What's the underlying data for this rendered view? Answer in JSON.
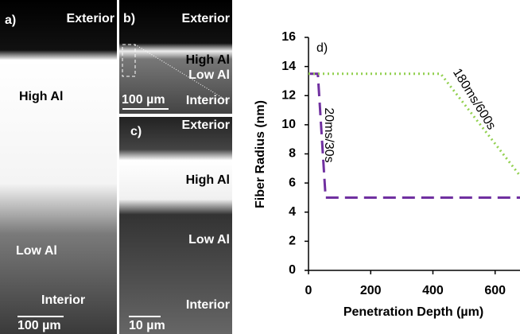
{
  "chart_data": {
    "type": "line",
    "panel_label": "d)",
    "x_label": "Penetration Depth (µm)",
    "y_label": "Fiber Radius (nm)",
    "xlim": [
      0,
      680
    ],
    "ylim": [
      0,
      16
    ],
    "xticks": [
      0,
      200,
      400,
      600
    ],
    "yticks": [
      0,
      2,
      4,
      6,
      8,
      10,
      12,
      14,
      16
    ],
    "series": [
      {
        "name": "20ms/30s",
        "color": "#7030a0",
        "style": "dashed",
        "x": [
          0,
          30,
          55,
          680
        ],
        "values": [
          13.5,
          13.5,
          5,
          5
        ]
      },
      {
        "name": "180ms/600s",
        "color": "#92d050",
        "style": "dotted",
        "x": [
          0,
          425,
          680
        ],
        "values": [
          13.5,
          13.5,
          6.5
        ]
      }
    ]
  },
  "micrographs": [
    {
      "label": "a)",
      "regions": [
        "Exterior",
        "High Al",
        "Low Al",
        "Interior"
      ],
      "scale_bar": "100 µm"
    },
    {
      "label": "b)",
      "regions": [
        "Exterior",
        "High Al",
        "Low Al",
        "Interior"
      ],
      "scale_bar": "100 µm"
    },
    {
      "label": "c)",
      "regions": [
        "Exterior",
        "High Al",
        "Low Al",
        "Interior"
      ],
      "scale_bar": "10 µm"
    }
  ]
}
